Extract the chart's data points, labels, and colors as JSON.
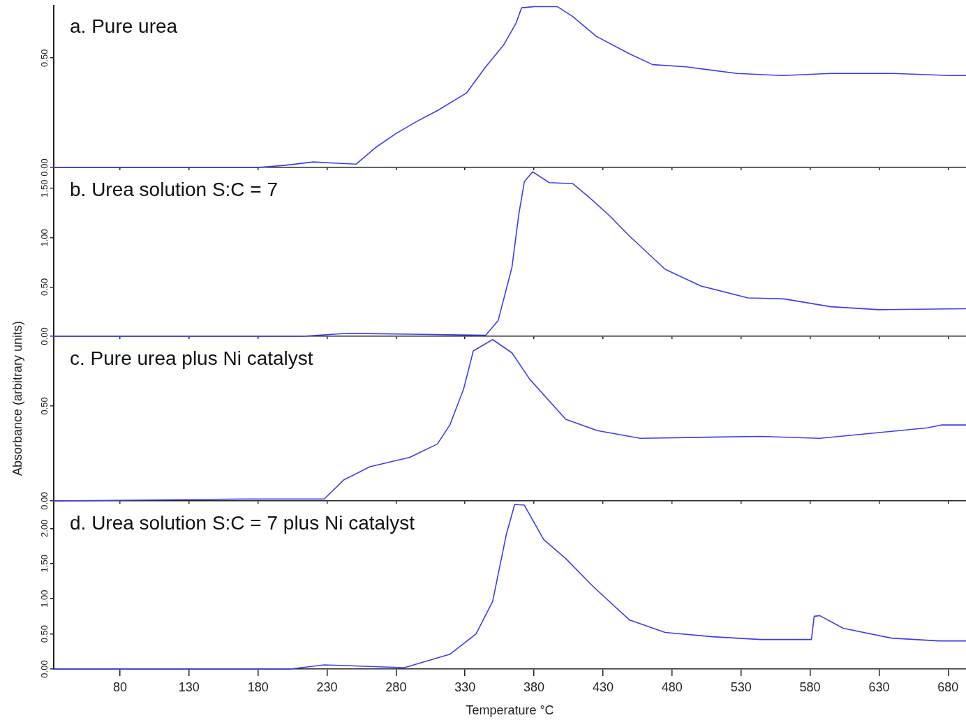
{
  "chart_data": [
    {
      "type": "line",
      "title": "a. Pure urea",
      "xlim": [
        32,
        693
      ],
      "xticks": [
        80,
        130,
        180,
        230,
        280,
        330,
        380,
        430,
        480,
        530,
        580,
        630,
        680
      ],
      "ylim": [
        0,
        0.74
      ],
      "yticks": [
        {
          "value": 0,
          "label": "0.00"
        },
        {
          "value": 0.5,
          "label": "0.50"
        }
      ],
      "tick_labels": "y",
      "series": [
        {
          "color": "#3d3df0",
          "x": [
            32,
            180,
            200,
            220,
            235,
            251,
            265,
            280,
            295,
            310,
            331,
            345,
            358,
            367,
            371,
            380,
            397,
            408,
            425,
            449,
            466,
            490,
            527,
            560,
            595,
            640,
            682,
            693
          ],
          "values": [
            0,
            0,
            0.01,
            0.025,
            0.02,
            0.015,
            0.09,
            0.155,
            0.21,
            0.26,
            0.34,
            0.46,
            0.56,
            0.66,
            0.73,
            0.735,
            0.735,
            0.69,
            0.6,
            0.52,
            0.47,
            0.46,
            0.43,
            0.42,
            0.43,
            0.43,
            0.42,
            0.42
          ]
        }
      ]
    },
    {
      "type": "line",
      "title": "b. Urea solution S:C = 7",
      "xlim": [
        32,
        693
      ],
      "xticks": [
        80,
        130,
        180,
        230,
        280,
        330,
        380,
        430,
        480,
        530,
        580,
        630,
        680
      ],
      "ylim": [
        0,
        1.7
      ],
      "yticks": [
        {
          "value": 0,
          "label": "0.00"
        },
        {
          "value": 0.5,
          "label": "0.50"
        },
        {
          "value": 1,
          "label": "1.00"
        },
        {
          "value": 1.5,
          "label": "1.50"
        }
      ],
      "tick_labels": "y",
      "series": [
        {
          "color": "#3d3df0",
          "x": [
            32,
            212,
            245,
            300,
            345,
            354,
            364,
            369,
            373,
            379,
            391,
            408,
            420,
            435,
            449,
            475,
            501,
            535,
            561,
            595,
            630,
            693
          ],
          "values": [
            0,
            0,
            0.03,
            0.02,
            0.01,
            0.16,
            0.7,
            1.24,
            1.57,
            1.67,
            1.56,
            1.55,
            1.41,
            1.22,
            1.02,
            0.68,
            0.51,
            0.39,
            0.38,
            0.3,
            0.27,
            0.28
          ]
        }
      ]
    },
    {
      "type": "line",
      "title": "c. Pure urea plus Ni catalyst",
      "ylabel": "Absorbance (arbitrary units)",
      "xlim": [
        32,
        693
      ],
      "xticks": [
        80,
        130,
        180,
        230,
        280,
        330,
        380,
        430,
        480,
        530,
        580,
        630,
        680
      ],
      "ylim": [
        0,
        0.86
      ],
      "yticks": [
        {
          "value": 0,
          "label": "0.00"
        },
        {
          "value": 0.5,
          "label": "0.50"
        }
      ],
      "tick_labels": "y",
      "series": [
        {
          "color": "#3d3df0",
          "x": [
            32,
            170,
            228,
            242,
            261,
            290,
            310,
            319,
            329,
            336,
            350,
            364,
            377,
            403,
            426,
            457,
            544,
            587,
            630,
            665,
            675,
            693
          ],
          "values": [
            0,
            0.01,
            0.01,
            0.11,
            0.18,
            0.23,
            0.3,
            0.4,
            0.59,
            0.79,
            0.85,
            0.78,
            0.64,
            0.43,
            0.37,
            0.33,
            0.34,
            0.33,
            0.36,
            0.385,
            0.4,
            0.4
          ]
        }
      ]
    },
    {
      "type": "line",
      "title": "d. Urea solution S:C = 7 plus Ni catalyst",
      "xlabel": "Temperature °C",
      "xlim": [
        32,
        693
      ],
      "xticks": [
        80,
        130,
        180,
        230,
        280,
        330,
        380,
        430,
        480,
        530,
        580,
        630,
        680
      ],
      "ylim": [
        0,
        2.37
      ],
      "yticks": [
        {
          "value": 0,
          "label": "0.00"
        },
        {
          "value": 0.5,
          "label": "0.50"
        },
        {
          "value": 1,
          "label": "1.00"
        },
        {
          "value": 1.5,
          "label": "1.50"
        },
        {
          "value": 2,
          "label": "2.00"
        }
      ],
      "series": [
        {
          "color": "#3d3df0",
          "x": [
            32,
            203,
            228,
            286,
            319,
            338,
            350,
            360,
            366,
            373,
            387,
            403,
            423,
            449,
            475,
            509,
            544,
            581,
            583,
            587,
            604,
            639,
            673,
            693
          ],
          "values": [
            0,
            0,
            0.06,
            0.02,
            0.21,
            0.5,
            0.96,
            1.92,
            2.34,
            2.33,
            1.84,
            1.57,
            1.17,
            0.7,
            0.52,
            0.46,
            0.42,
            0.42,
            0.75,
            0.76,
            0.58,
            0.44,
            0.4,
            0.4
          ]
        }
      ]
    }
  ]
}
